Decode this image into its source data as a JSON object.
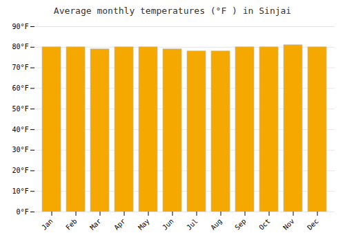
{
  "chart_data": {
    "type": "bar",
    "title": "Average monthly temperatures (°F ) in Sinjai",
    "categories": [
      "Jan",
      "Feb",
      "Mar",
      "Apr",
      "May",
      "Jun",
      "Jul",
      "Aug",
      "Sep",
      "Oct",
      "Nov",
      "Dec"
    ],
    "values": [
      80,
      80,
      79,
      80,
      80,
      79,
      78,
      78,
      80,
      80,
      81,
      80
    ],
    "color": "#F5A800",
    "ylim": [
      0,
      90
    ],
    "yticks": [
      {
        "value": 0,
        "label": "0°F"
      },
      {
        "value": 10,
        "label": "10°F"
      },
      {
        "value": 20,
        "label": "20°F"
      },
      {
        "value": 30,
        "label": "30°F"
      },
      {
        "value": 40,
        "label": "40°F"
      },
      {
        "value": 50,
        "label": "50°F"
      },
      {
        "value": 60,
        "label": "60°F"
      },
      {
        "value": 70,
        "label": "70°F"
      },
      {
        "value": 80,
        "label": "80°F"
      },
      {
        "value": 90,
        "label": "90°F"
      }
    ],
    "grid": true
  }
}
